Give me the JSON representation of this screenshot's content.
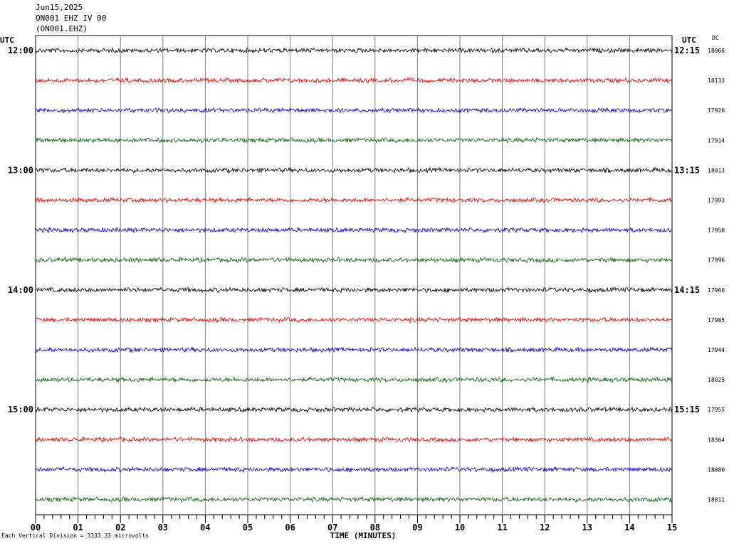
{
  "header": {
    "date": "Jun15,2025",
    "station": "ON001 EHZ IV 00",
    "channel": "(ON001.EHZ)"
  },
  "utc_left": "UTC",
  "utc_right": "UTC",
  "dc_label": "DC",
  "footer_note": "Each Vertical Division = 3333.33 microvolts",
  "colors": {
    "trace_cycle": [
      "#000000",
      "#e00000",
      "#0000d0",
      "#006400"
    ],
    "grid": "#808080"
  },
  "chart_data": {
    "type": "line",
    "title": "",
    "xlabel": "TIME (MINUTES)",
    "ylabel": "",
    "x_range": [
      0,
      15
    ],
    "x_ticks": [
      "00",
      "01",
      "02",
      "03",
      "04",
      "05",
      "06",
      "07",
      "08",
      "09",
      "10",
      "11",
      "12",
      "13",
      "14",
      "15"
    ],
    "rows": [
      {
        "left": "12:00",
        "right": "12:15",
        "dc": "18066"
      },
      {
        "left": "",
        "right": "",
        "dc": "18133"
      },
      {
        "left": "",
        "right": "",
        "dc": "17926"
      },
      {
        "left": "",
        "right": "",
        "dc": "17914"
      },
      {
        "left": "13:00",
        "right": "13:15",
        "dc": "18013"
      },
      {
        "left": "",
        "right": "",
        "dc": "17993"
      },
      {
        "left": "",
        "right": "",
        "dc": "17950"
      },
      {
        "left": "",
        "right": "",
        "dc": "17996"
      },
      {
        "left": "14:00",
        "right": "14:15",
        "dc": "17966"
      },
      {
        "left": "",
        "right": "",
        "dc": "17985"
      },
      {
        "left": "",
        "right": "",
        "dc": "17944"
      },
      {
        "left": "",
        "right": "",
        "dc": "18025"
      },
      {
        "left": "15:00",
        "right": "15:15",
        "dc": "17955"
      },
      {
        "left": "",
        "right": "",
        "dc": "18364"
      },
      {
        "left": "",
        "right": "",
        "dc": "18080"
      },
      {
        "left": "",
        "right": "",
        "dc": "18011"
      }
    ]
  }
}
